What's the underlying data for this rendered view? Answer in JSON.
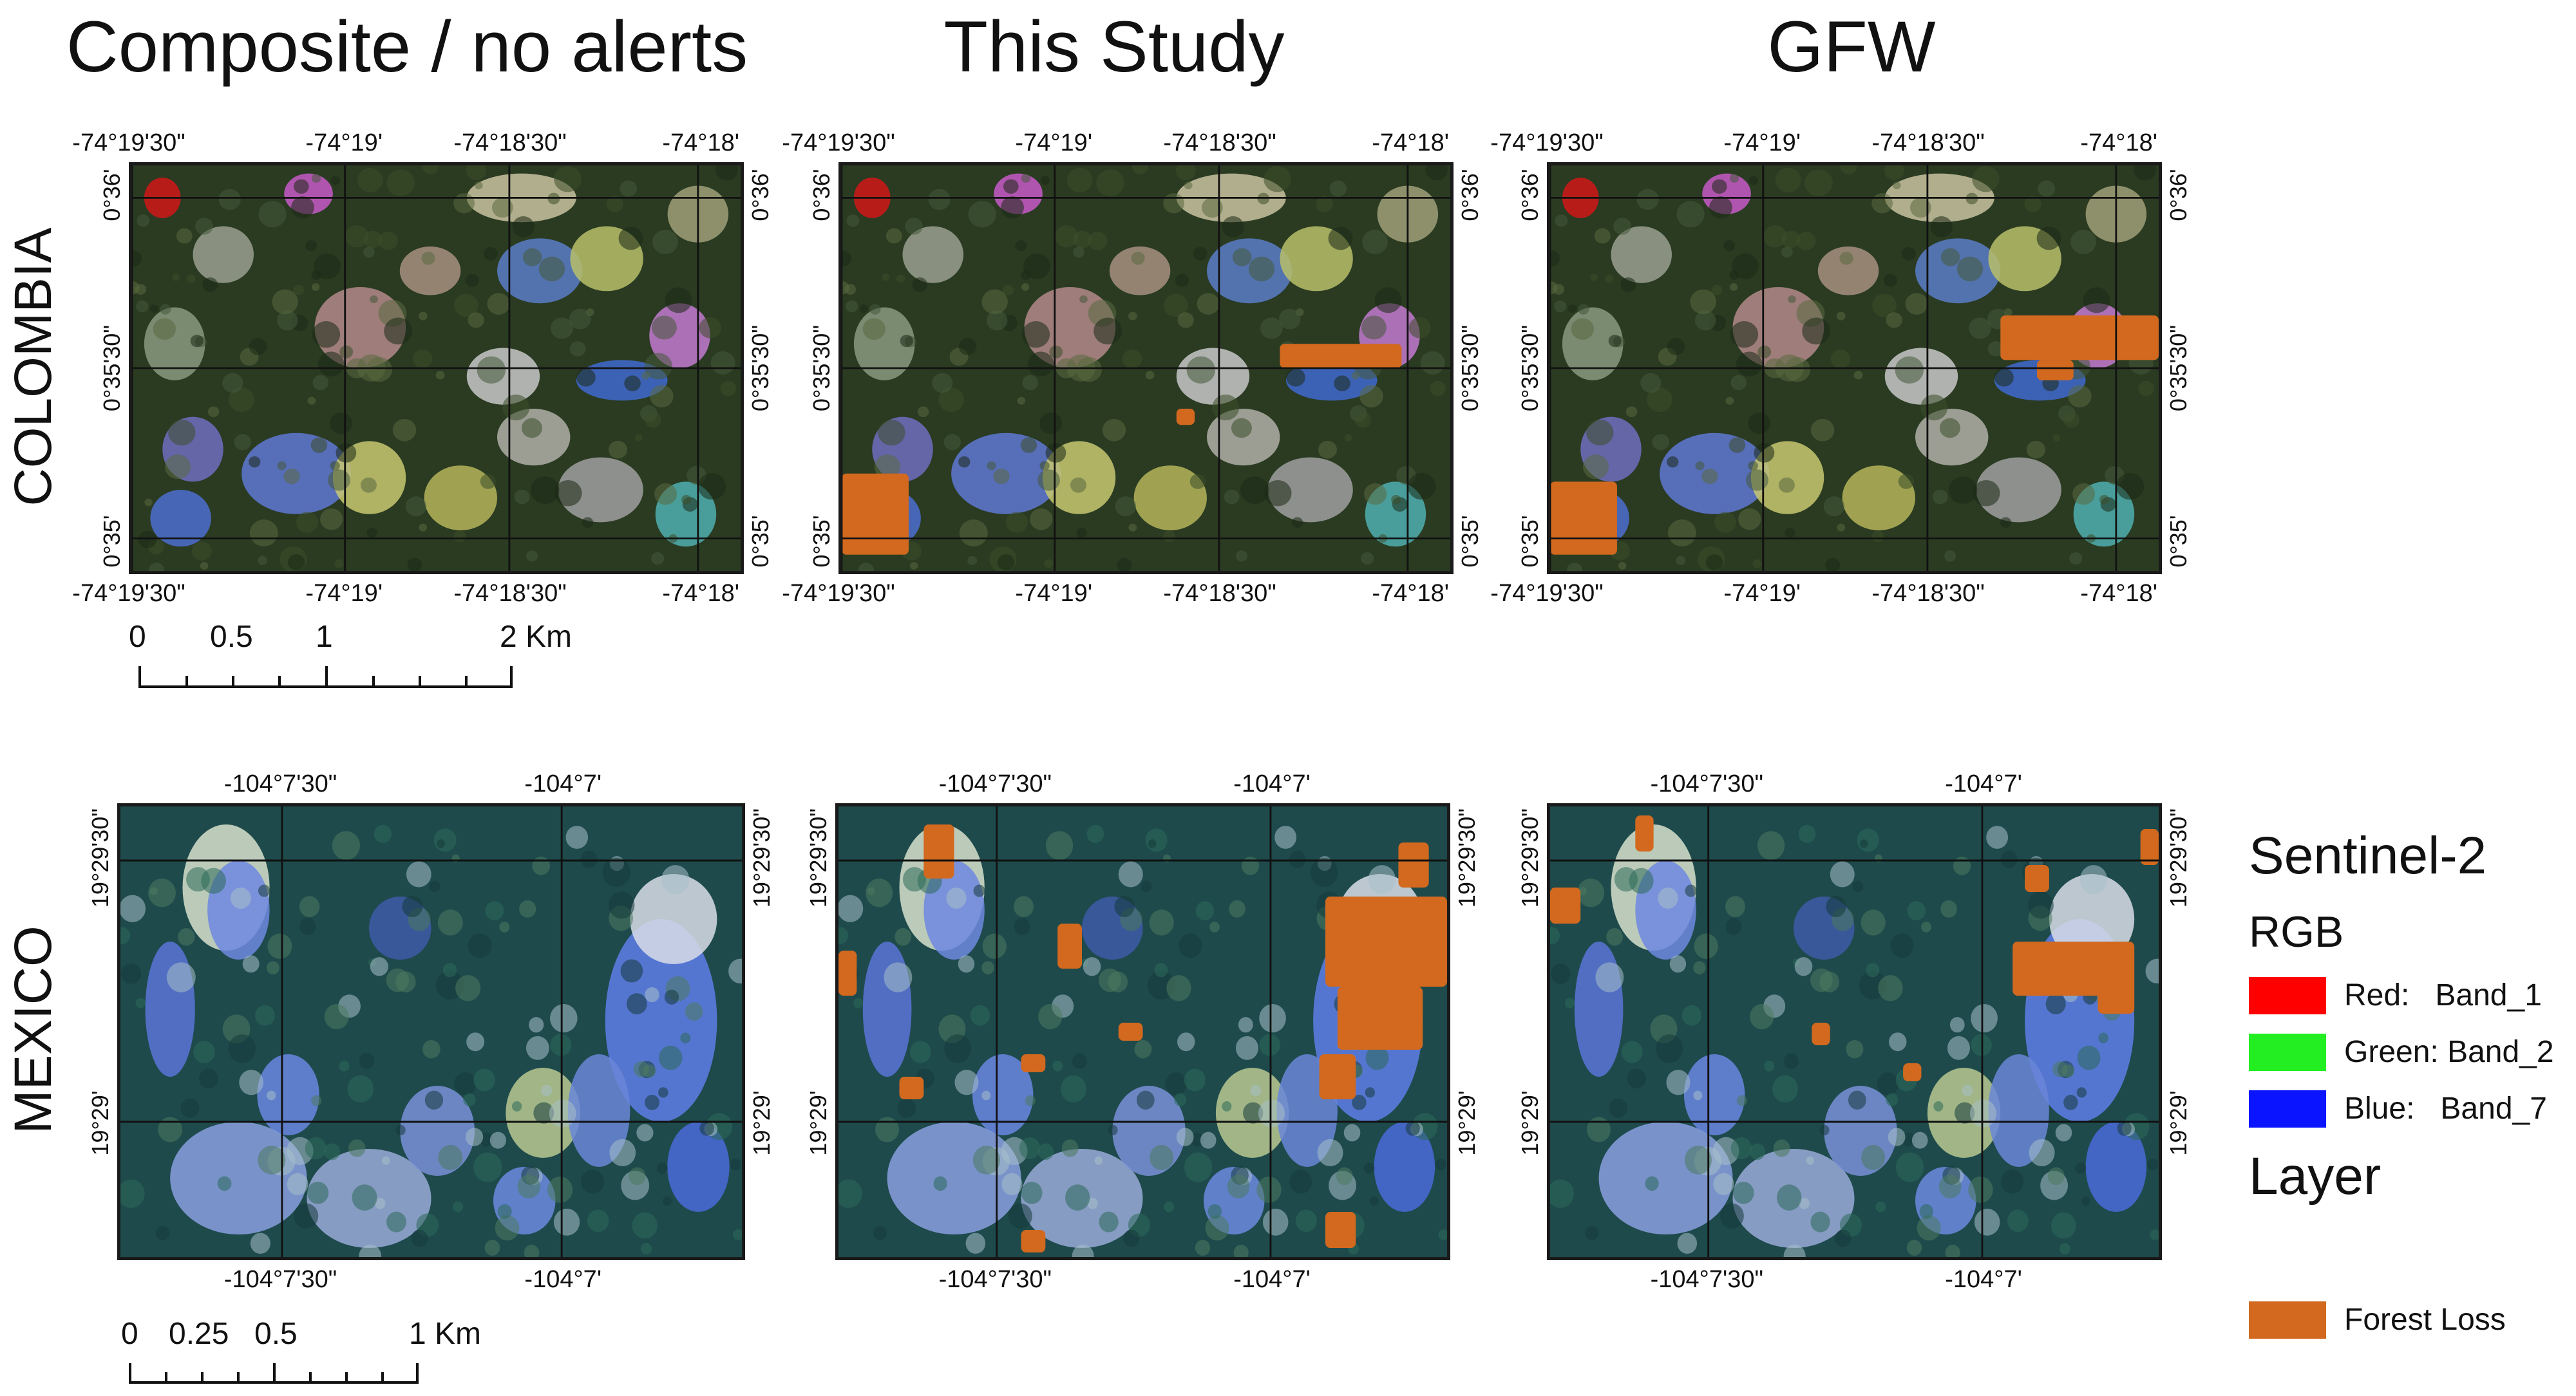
{
  "columns": [
    "Composite / no alerts",
    "This Study",
    "GFW"
  ],
  "rows": [
    "COLOMBIA",
    "MEXICO"
  ],
  "colombia": {
    "lon_ticks": [
      "-74°19'30\"",
      "-74°19'",
      "-74°18'30\"",
      "-74°18'"
    ],
    "lat_ticks": [
      "0°36'",
      "0°35'30\"",
      "0°35'"
    ]
  },
  "mexico": {
    "lon_ticks": [
      "-104°7'30\"",
      "-104°7'"
    ],
    "lat_ticks": [
      "19°29'30\"",
      "19°29'"
    ]
  },
  "scale_colombia": {
    "labels": [
      "0",
      "0.5",
      "1",
      "2 Km"
    ]
  },
  "scale_mexico": {
    "labels": [
      "0",
      "0.25",
      "0.5",
      "1 Km"
    ]
  },
  "legend": {
    "title": "Sentinel-2",
    "rgb_title": "RGB",
    "items": [
      {
        "label": "Red:   Band_1",
        "color": "#ff0000"
      },
      {
        "label": "Green: Band_2",
        "color": "#22ee22"
      },
      {
        "label": "Blue:   Band_7",
        "color": "#0a14ff"
      }
    ],
    "layer_title": "Layer",
    "layer_items": [
      {
        "label": "Forest Loss",
        "color": "#d2691e"
      }
    ]
  }
}
